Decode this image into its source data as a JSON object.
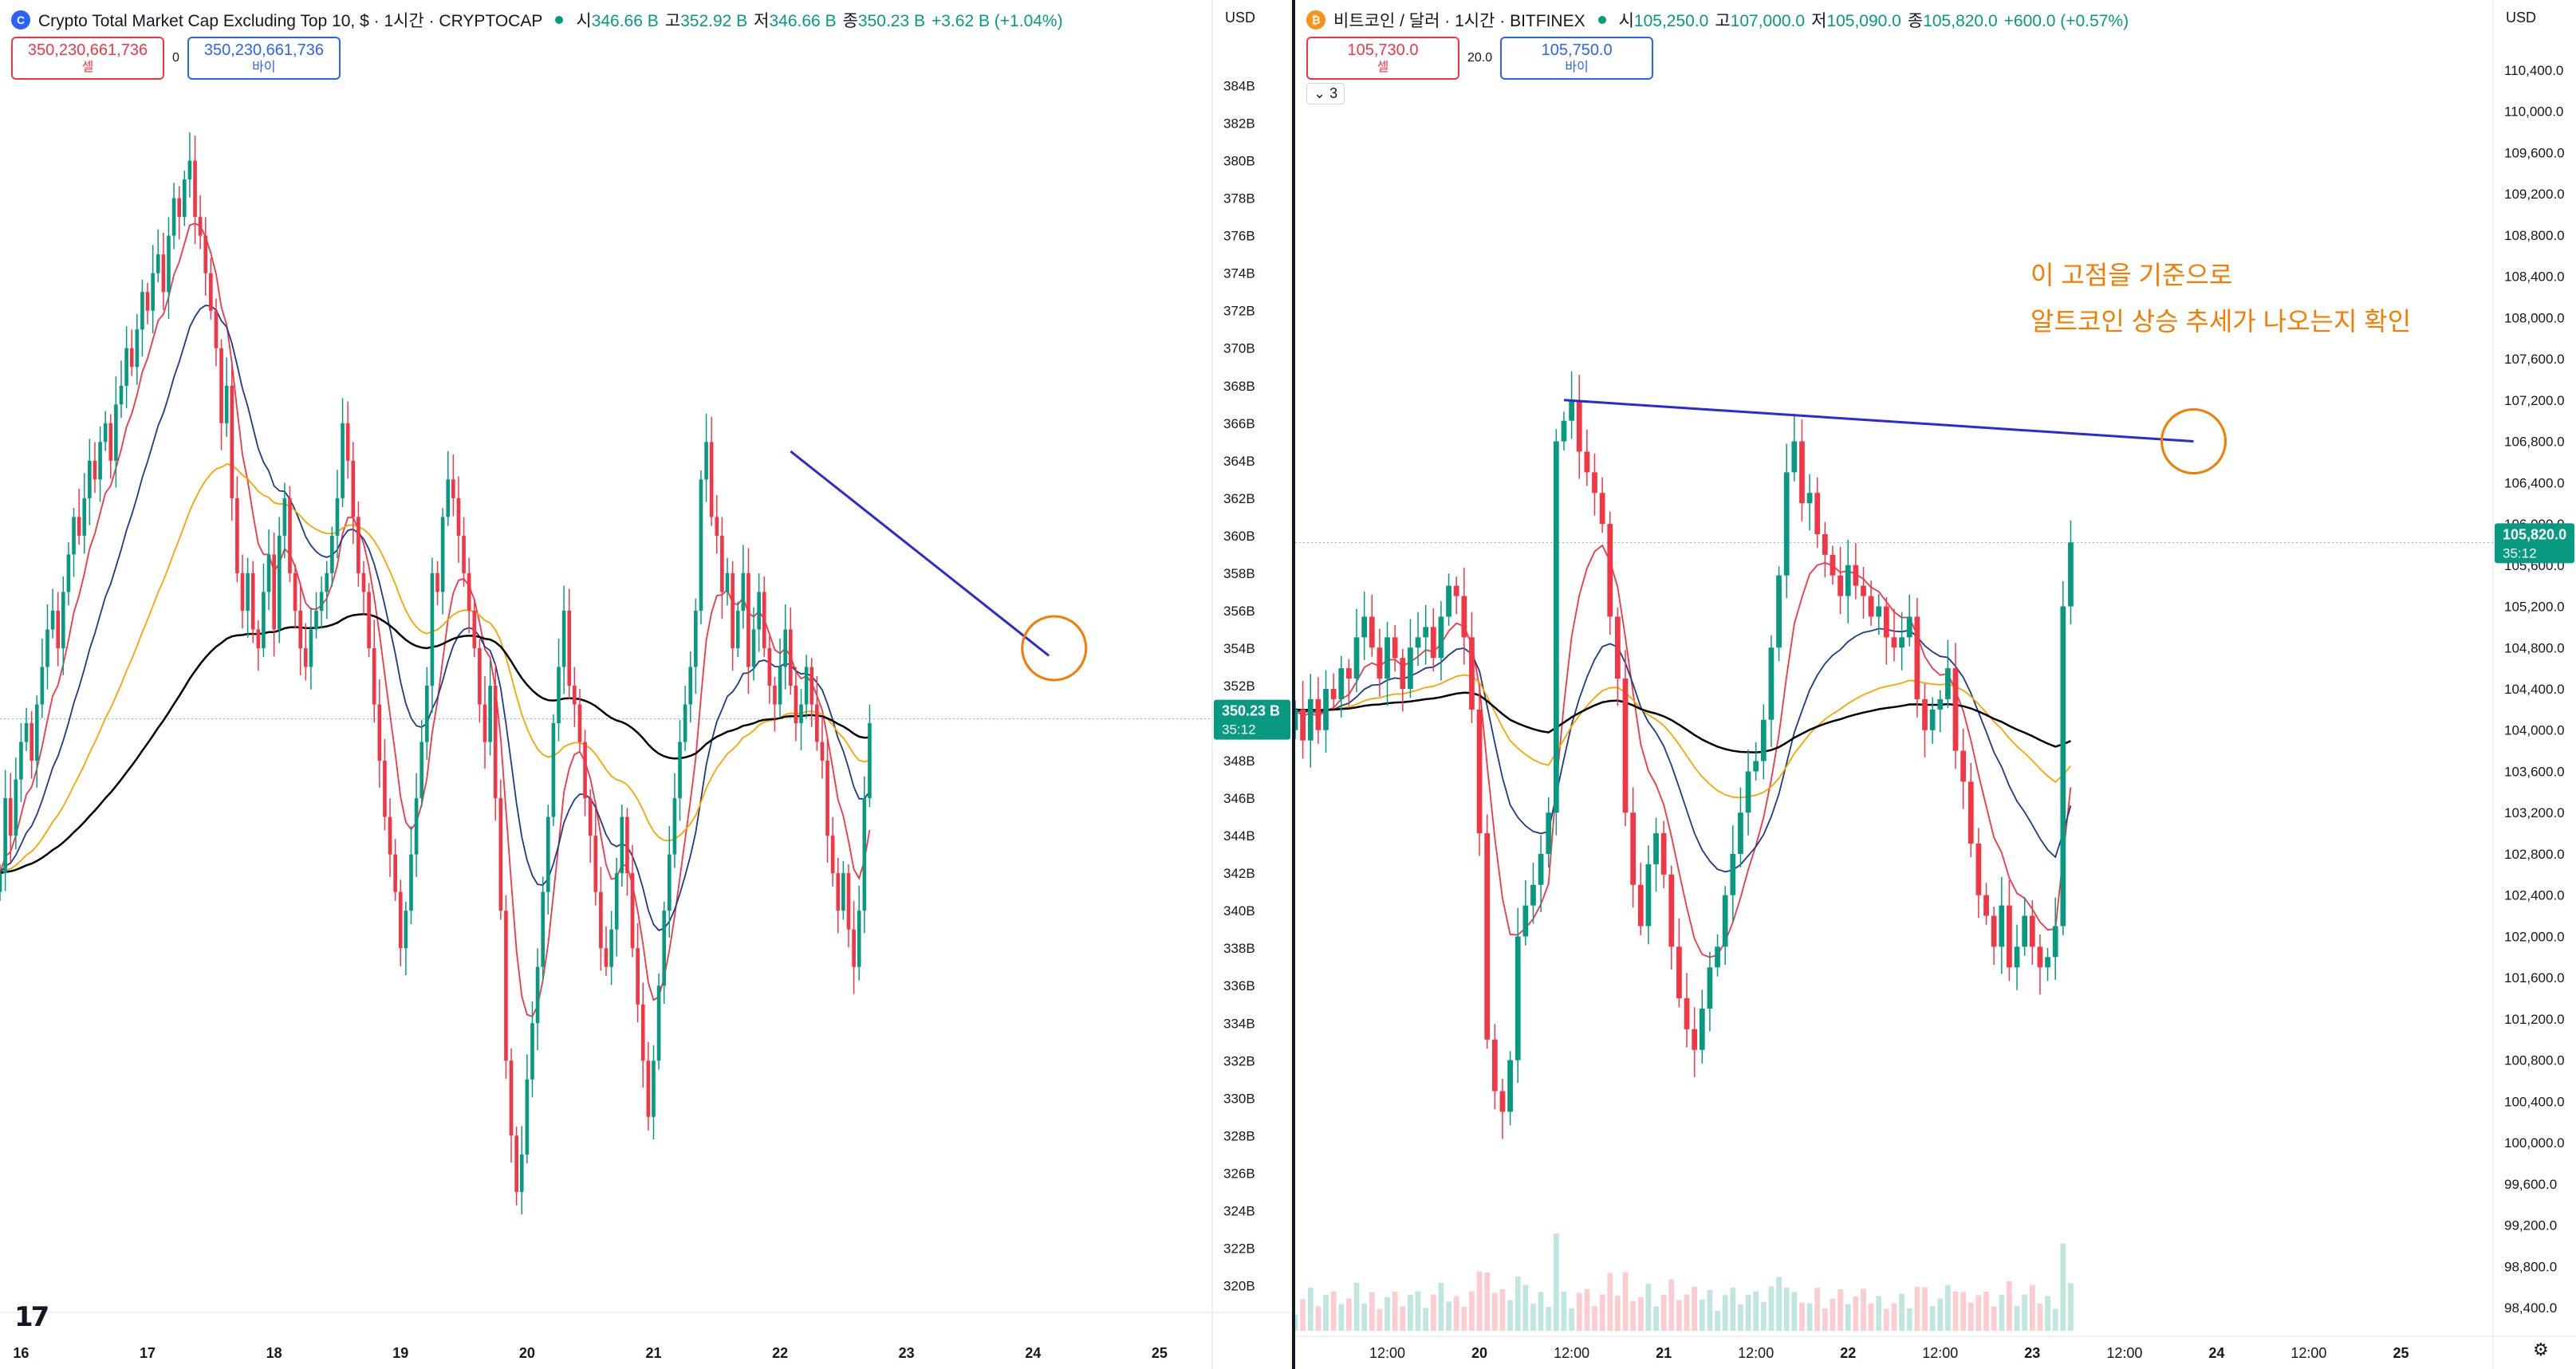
{
  "left": {
    "symbol_icon": "C",
    "title": "Crypto Total Market Cap Excluding Top 10, $ · 1시간 · CRYPTOCAP",
    "ohlc": [
      {
        "k": "시",
        "v": "346.66 B"
      },
      {
        "k": "고",
        "v": "352.92 B"
      },
      {
        "k": "저",
        "v": "346.66 B"
      },
      {
        "k": "종",
        "v": "350.23 B"
      },
      {
        "k": "",
        "v": "+3.62 B (+1.04%)"
      }
    ],
    "sell": {
      "price": "350,230,661,736",
      "label": "셀"
    },
    "spread": "0",
    "buy": {
      "price": "350,230,661,736",
      "label": "바이"
    },
    "currency": "USD",
    "price_badge": {
      "price": "350.23 B",
      "time": "35:12"
    }
  },
  "right": {
    "symbol_icon": "₿",
    "title": "비트코인 / 달러 · 1시간 · BITFINEX",
    "ohlc": [
      {
        "k": "시",
        "v": "105,250.0"
      },
      {
        "k": "고",
        "v": "107,000.0"
      },
      {
        "k": "저",
        "v": "105,090.0"
      },
      {
        "k": "종",
        "v": "105,820.0"
      },
      {
        "k": "",
        "v": "+600.0 (+0.57%)"
      }
    ],
    "sell": {
      "price": "105,730.0",
      "label": "셀"
    },
    "spread": "20.0",
    "buy": {
      "price": "105,750.0",
      "label": "바이"
    },
    "collapse": "⌄ 3",
    "currency": "USD",
    "price_badge": {
      "price": "105,820.0",
      "time": "35:12"
    },
    "annotation": [
      "이 고점을 기준으로",
      "알트코인 상승 추세가 나오는지 확인"
    ]
  },
  "colors": {
    "up": "#089981",
    "down": "#f23645",
    "ma_red": "#f23645",
    "ma_blue": "#1e3a8a",
    "ma_orange": "#f7a600",
    "ma_black": "#000000",
    "trendline": "#2a2ad6",
    "circle": "#f57c00"
  },
  "icons": [
    "tradingview-logo",
    "gear-icon"
  ],
  "chart_data": [
    {
      "type": "candlestick",
      "title": "Crypto Total Market Cap Excluding Top 10, $",
      "unit": "B",
      "y_ticks": [
        384,
        382,
        380,
        378,
        376,
        374,
        372,
        370,
        368,
        366,
        364,
        362,
        360,
        358,
        356,
        354,
        352,
        350,
        348,
        346,
        344,
        342,
        340,
        338,
        336,
        334,
        332,
        330,
        328,
        326,
        324,
        322,
        320
      ],
      "ylim": [
        319,
        385
      ],
      "x_ticks": [
        "16",
        "17",
        "18",
        "19",
        "20",
        "21",
        "22",
        "23",
        "24",
        "25"
      ],
      "x_tick_hours": [
        0,
        24,
        48,
        72,
        96,
        120,
        144,
        168,
        192,
        216
      ],
      "candles_close": [
        342,
        346,
        344,
        347,
        349,
        350,
        348,
        351,
        353,
        355,
        356,
        354,
        357,
        359,
        361,
        360,
        362,
        364,
        363,
        365,
        366,
        364,
        367,
        368,
        370,
        369,
        371,
        373,
        372,
        374,
        375,
        373,
        376,
        378,
        377,
        379,
        380,
        377,
        376,
        374,
        372,
        370,
        366,
        368,
        362,
        358,
        356,
        358,
        355,
        354,
        357,
        359,
        355,
        360,
        362,
        358,
        356,
        354,
        353,
        355,
        356,
        357,
        358,
        360,
        362,
        366,
        364,
        361,
        358,
        357,
        354,
        351,
        348,
        345,
        343,
        341,
        338,
        340,
        343,
        346,
        349,
        352,
        358,
        357,
        361,
        363,
        362,
        360,
        358,
        356,
        354,
        351,
        349,
        352,
        346,
        340,
        332,
        328,
        325,
        327,
        331,
        334,
        337,
        341,
        345,
        350,
        353,
        356,
        352,
        351,
        349,
        346,
        344,
        341,
        338,
        337,
        339,
        342,
        345,
        342,
        338,
        335,
        332,
        329,
        332,
        336,
        340,
        343,
        346,
        349,
        351,
        353,
        356,
        363,
        365,
        361,
        360,
        357,
        358,
        354,
        356,
        358,
        353,
        355,
        357,
        354,
        352,
        351,
        353,
        355,
        352,
        350,
        351,
        353,
        351,
        349,
        348,
        344,
        342,
        340,
        342,
        339,
        337,
        340,
        346,
        350
      ],
      "start_hour": -4,
      "trendline": [
        [
          146,
          364.5
        ],
        [
          195,
          353.6
        ]
      ],
      "circle": {
        "hour": 196,
        "value": 354.0
      },
      "last_price": 350.23
    },
    {
      "type": "candlestick",
      "title": "비트코인 / 달러 · 1시간 · BITFINEX",
      "y_ticks": [
        110400,
        110000,
        109600,
        109200,
        108800,
        108400,
        108000,
        107600,
        107200,
        106800,
        106400,
        106000,
        105600,
        105200,
        104800,
        104400,
        104000,
        103600,
        103200,
        102800,
        102400,
        102000,
        101600,
        101200,
        100800,
        100400,
        100000,
        99600,
        99200,
        98800,
        98400
      ],
      "ylim": [
        98200,
        110600
      ],
      "x_ticks": [
        "12:00",
        "20",
        "12:00",
        "21",
        "12:00",
        "22",
        "12:00",
        "23",
        "12:00",
        "24",
        "12:00",
        "25"
      ],
      "x_tick_hours": [
        12,
        24,
        36,
        48,
        60,
        72,
        84,
        96,
        108,
        120,
        132,
        144
      ],
      "candles_close": [
        104200,
        103900,
        104300,
        104000,
        104400,
        104300,
        104600,
        104500,
        104900,
        105100,
        104800,
        104500,
        104900,
        104700,
        104400,
        104800,
        104900,
        105000,
        104700,
        105100,
        105400,
        105300,
        104900,
        104200,
        103000,
        101000,
        100500,
        100300,
        100800,
        102000,
        102300,
        102500,
        102800,
        103200,
        106800,
        107000,
        107200,
        106700,
        106500,
        106300,
        106000,
        105100,
        104500,
        103200,
        102500,
        102100,
        102700,
        103000,
        102600,
        101900,
        101400,
        101100,
        100900,
        101300,
        101700,
        101900,
        102400,
        102800,
        103200,
        103600,
        103700,
        104100,
        104800,
        105500,
        106500,
        106800,
        106200,
        106300,
        105900,
        105700,
        105500,
        105300,
        105600,
        105400,
        105300,
        105100,
        105200,
        104900,
        104800,
        104900,
        105100,
        104300,
        104000,
        104200,
        104300,
        104600,
        103800,
        103500,
        102900,
        102400,
        102200,
        101900,
        102300,
        101700,
        101900,
        102200,
        101900,
        101700,
        101800,
        102100,
        105200,
        105820
      ],
      "start_hour": 0,
      "trendline": [
        [
          35,
          107200
        ],
        [
          117,
          106800
        ]
      ],
      "circle": {
        "hour": 117,
        "value": 106800
      },
      "last_price": 105820
    }
  ]
}
